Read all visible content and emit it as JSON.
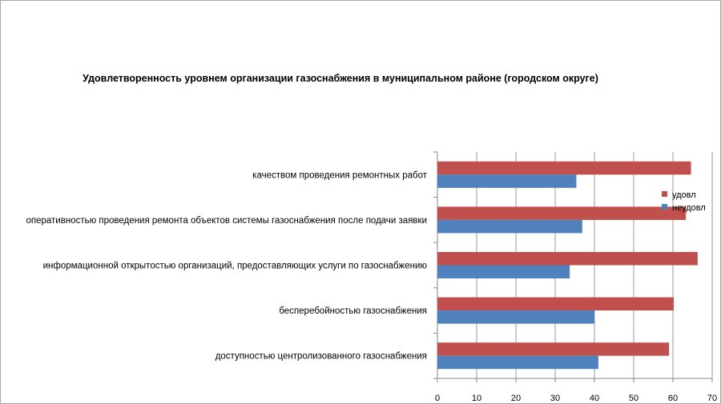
{
  "chart_data": {
    "type": "bar",
    "orientation": "horizontal",
    "title": "Удовлетворенность уровнем организации газоснабжения в муниципальном районе (городском округе)",
    "categories": [
      "качеством проведения ремонтных работ",
      "оперативностью проведения ремонта объектов системы газоснабжения после подачи заявки",
      "информационной открытостью организаций, предоставляющих услуги по газоснабжению",
      "бесперебойностью газоснабжения",
      "доступностью центролизованного газоснабжения"
    ],
    "series": [
      {
        "name": "удовл",
        "color": "#c0504d",
        "values": [
          64.6,
          63.3,
          66.3,
          60.2,
          59.0
        ]
      },
      {
        "name": "неудовл",
        "color": "#4f81bd",
        "values": [
          35.4,
          36.9,
          33.7,
          40.0,
          41.0
        ]
      }
    ],
    "xlim": [
      0,
      70
    ],
    "xticks": [
      "0",
      "10",
      "20",
      "30",
      "40",
      "50",
      "60",
      "70"
    ],
    "grid": "vertical-major",
    "legend": "right"
  }
}
